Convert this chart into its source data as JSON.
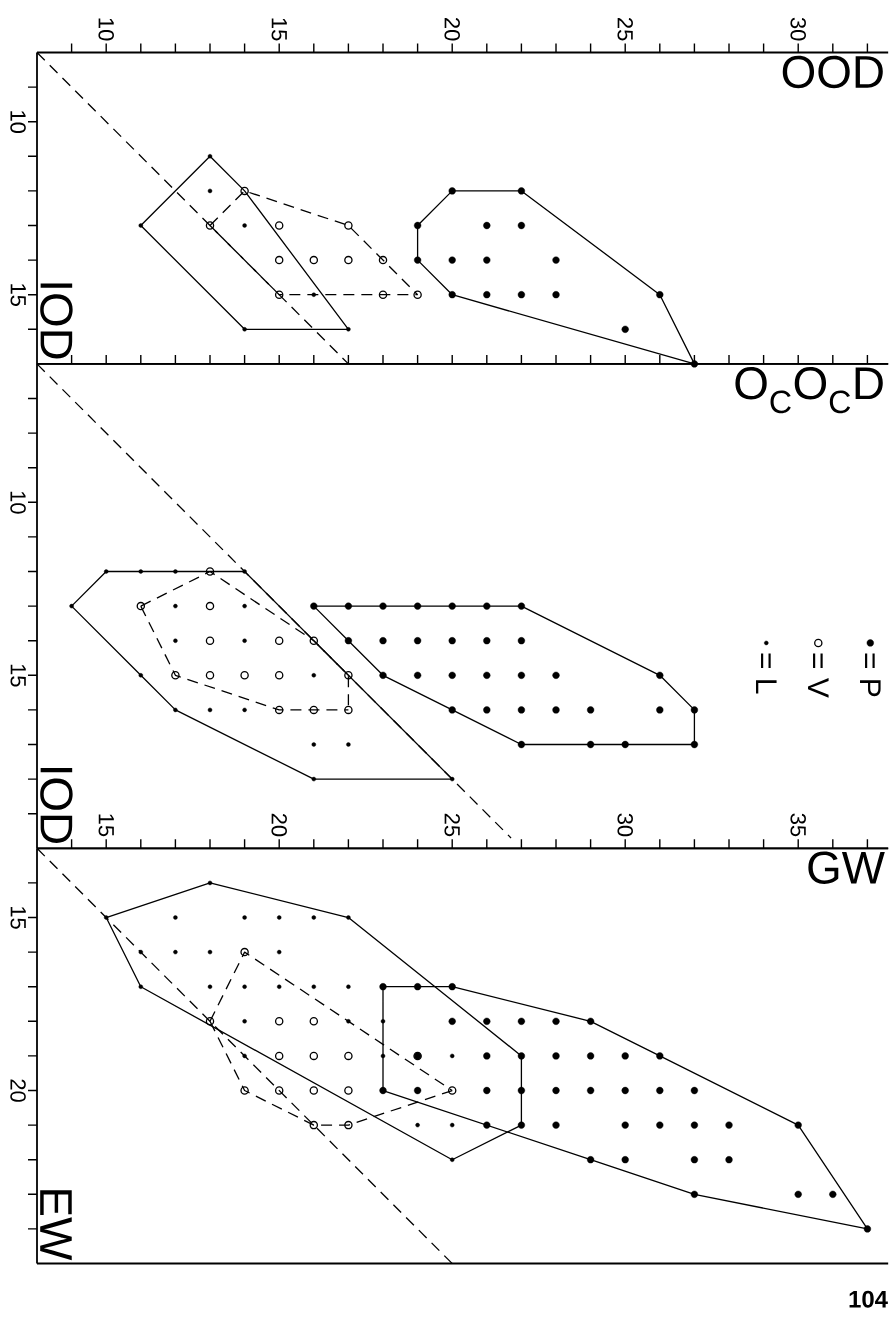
{
  "chart_data": [
    {
      "type": "scatter",
      "xlabel": "OOD",
      "ylabel": "IOD",
      "xlim": [
        8,
        32.6
      ],
      "ylim": [
        17,
        8
      ],
      "xticks": [
        {
          "value": 9,
          "label": null
        },
        10,
        {
          "value": 11,
          "label": null
        },
        {
          "value": 12,
          "label": null
        },
        {
          "value": 13,
          "label": null
        },
        {
          "value": 14,
          "label": null
        },
        15,
        {
          "value": 16,
          "label": null
        },
        {
          "value": 17,
          "label": null
        },
        {
          "value": 18,
          "label": null
        },
        {
          "value": 19,
          "label": null
        },
        20,
        {
          "value": 21,
          "label": null
        },
        {
          "value": 22,
          "label": null
        },
        {
          "value": 23,
          "label": null
        },
        {
          "value": 24,
          "label": null
        },
        25,
        {
          "value": 26,
          "label": null
        },
        {
          "value": 27,
          "label": null
        },
        {
          "value": 28,
          "label": null
        },
        {
          "value": 29,
          "label": null
        },
        30,
        {
          "value": 31,
          "label": null
        },
        {
          "value": 32,
          "label": null
        }
      ],
      "yticks": [
        {
          "value": 9,
          "label": null
        },
        10,
        {
          "value": 11,
          "label": null
        },
        {
          "value": 12,
          "label": null
        },
        {
          "value": 13,
          "label": null
        },
        {
          "value": 14,
          "label": null
        },
        15,
        {
          "value": 16,
          "label": null
        }
      ],
      "series": [
        {
          "type": "line",
          "line_style": "dashed",
          "color": "#000000",
          "x": [
            8,
            17
          ],
          "values": [
            8,
            17
          ]
        },
        {
          "type": "line",
          "line_style": "solid",
          "color": "#000000",
          "x": [
            11,
            13,
            14,
            17
          ],
          "values": [
            13,
            11,
            12,
            16
          ]
        },
        {
          "type": "line",
          "line_style": "solid",
          "color": "#000000",
          "x": [
            11,
            14,
            17
          ],
          "values": [
            13,
            16,
            16
          ]
        },
        {
          "type": "line",
          "line_style": "dashed",
          "color": "#000000",
          "x": [
            13,
            14,
            17,
            19
          ],
          "values": [
            13,
            12,
            13,
            15
          ]
        },
        {
          "type": "line",
          "line_style": "dashed",
          "color": "#000000",
          "x": [
            13,
            15,
            19
          ],
          "values": [
            13,
            15,
            15
          ]
        },
        {
          "type": "line",
          "line_style": "solid",
          "color": "#000000",
          "x": [
            19,
            19,
            20,
            22,
            26,
            27
          ],
          "values": [
            14,
            13,
            12,
            12,
            15,
            17
          ]
        },
        {
          "type": "line",
          "line_style": "solid",
          "color": "#000000",
          "x": [
            19,
            20,
            27
          ],
          "values": [
            14,
            15,
            17
          ]
        },
        {
          "marker": "circle",
          "color": "#000000",
          "x": [
            20,
            22,
            19,
            21,
            22,
            19,
            20,
            21,
            23,
            20,
            21,
            22,
            23,
            26,
            25,
            27
          ],
          "values": [
            12,
            12,
            13,
            13,
            13,
            14,
            14,
            14,
            14,
            15,
            15,
            15,
            15,
            15,
            16,
            17
          ]
        },
        {
          "marker": "circle",
          "color": "#000000",
          "x": [
            14,
            13,
            15,
            17,
            15,
            16,
            17,
            18,
            15,
            18,
            19
          ],
          "values": [
            12,
            13,
            13,
            13,
            14,
            14,
            14,
            14,
            15,
            15,
            15
          ]
        },
        {
          "marker": "circle",
          "color": "#000000",
          "x": [
            13,
            13,
            11,
            14,
            16,
            14,
            17
          ],
          "values": [
            11,
            12,
            13,
            13,
            15,
            16,
            16
          ]
        }
      ]
    },
    {
      "type": "scatter",
      "xlabel": "O$_{C}$O$_{C}$D",
      "ylabel": "IOD",
      "xlim": [
        8,
        32.6
      ],
      "ylim": [
        20,
        6
      ],
      "tick_labels": "y",
      "legend": "right",
      "xticks": [
        {
          "value": 9,
          "label": null
        },
        {
          "value": 10,
          "label": null
        },
        {
          "value": 11,
          "label": null
        },
        {
          "value": 12,
          "label": null
        },
        {
          "value": 13,
          "label": null
        },
        {
          "value": 14,
          "label": null
        },
        {
          "value": 15,
          "label": null
        },
        {
          "value": 16,
          "label": null
        },
        {
          "value": 17,
          "label": null
        },
        {
          "value": 18,
          "label": null
        },
        {
          "value": 19,
          "label": null
        },
        {
          "value": 20,
          "label": null
        },
        {
          "value": 21,
          "label": null
        },
        {
          "value": 22,
          "label": null
        },
        {
          "value": 23,
          "label": null
        },
        {
          "value": 24,
          "label": null
        },
        {
          "value": 25,
          "label": null
        },
        {
          "value": 26,
          "label": null
        },
        {
          "value": 27,
          "label": null
        },
        {
          "value": 28,
          "label": null
        },
        {
          "value": 29,
          "label": null
        },
        {
          "value": 30,
          "label": null
        },
        {
          "value": 31,
          "label": null
        },
        {
          "value": 32,
          "label": null
        }
      ],
      "yticks": [
        {
          "value": 7,
          "label": null
        },
        {
          "value": 8,
          "label": null
        },
        {
          "value": 9,
          "label": null
        },
        10,
        {
          "value": 11,
          "label": null
        },
        {
          "value": 12,
          "label": null
        },
        {
          "value": 13,
          "label": null
        },
        {
          "value": 14,
          "label": null
        },
        15,
        {
          "value": 16,
          "label": null
        },
        {
          "value": 17,
          "label": null
        },
        {
          "value": 18,
          "label": null
        },
        {
          "value": 19,
          "label": null
        }
      ],
      "series": [
        {
          "type": "line",
          "line_style": "dashed",
          "color": "#000000",
          "x": [
            8,
            21.7
          ],
          "values": [
            6,
            19.7
          ]
        },
        {
          "type": "line",
          "line_style": "solid",
          "color": "#000000",
          "x": [
            9,
            10,
            14,
            20
          ],
          "values": [
            13,
            12,
            12,
            18
          ]
        },
        {
          "type": "line",
          "line_style": "solid",
          "color": "#000000",
          "x": [
            9,
            11,
            12,
            16,
            20
          ],
          "values": [
            13,
            15,
            16,
            18,
            18
          ]
        },
        {
          "type": "line",
          "line_style": "dashed",
          "color": "#000000",
          "x": [
            11,
            13,
            16,
            17,
            17
          ],
          "values": [
            13,
            12,
            14,
            15,
            16
          ]
        },
        {
          "type": "line",
          "line_style": "dashed",
          "color": "#000000",
          "x": [
            11,
            12,
            15,
            17
          ],
          "values": [
            13,
            15,
            16,
            16
          ]
        },
        {
          "type": "line",
          "line_style": "solid",
          "color": "#000000",
          "x": [
            16,
            22,
            26,
            27,
            27
          ],
          "values": [
            13,
            13,
            15,
            16,
            17
          ]
        },
        {
          "type": "line",
          "line_style": "solid",
          "color": "#000000",
          "x": [
            16,
            17,
            18,
            20,
            22,
            27
          ],
          "values": [
            13,
            14,
            15,
            16,
            17,
            17
          ]
        },
        {
          "name": "= P",
          "marker": "circle",
          "color": "#000000",
          "x": [
            16,
            17,
            18,
            19,
            20,
            21,
            22,
            17,
            18,
            19,
            20,
            21,
            22,
            18,
            19,
            20,
            21,
            22,
            23,
            26,
            20,
            21,
            22,
            23,
            24,
            26,
            27,
            22,
            24,
            25,
            27
          ],
          "values": [
            13,
            13,
            13,
            13,
            13,
            13,
            13,
            14,
            14,
            14,
            14,
            14,
            14,
            15,
            15,
            15,
            15,
            15,
            15,
            15,
            16,
            16,
            16,
            16,
            16,
            16,
            16,
            17,
            17,
            17,
            17
          ]
        },
        {
          "name": "= V",
          "marker": "circle",
          "color": "#000000",
          "x": [
            13,
            11,
            13,
            13,
            15,
            16,
            12,
            13,
            14,
            15,
            17,
            15,
            16,
            17
          ],
          "values": [
            12,
            13,
            13,
            14,
            14,
            14,
            15,
            15,
            15,
            15,
            15,
            16,
            16,
            16
          ]
        },
        {
          "name": "= L",
          "marker": "circle",
          "color": "#000000",
          "x": [
            9,
            10,
            11,
            12,
            14,
            12,
            14,
            12,
            14,
            11,
            16,
            12,
            13,
            14,
            16,
            17,
            16,
            20
          ],
          "values": [
            13,
            12,
            12,
            12,
            12,
            13,
            13,
            14,
            14,
            15,
            15,
            16,
            16,
            16,
            17,
            17,
            18,
            18
          ]
        }
      ]
    },
    {
      "type": "scatter",
      "xlabel": "GW",
      "ylabel": "EW",
      "xlim": [
        13,
        37.6
      ],
      "ylim": [
        25,
        13
      ],
      "annotations": [
        "104"
      ],
      "xticks": [
        {
          "value": 14,
          "label": null
        },
        15,
        {
          "value": 16,
          "label": null
        },
        {
          "value": 17,
          "label": null
        },
        {
          "value": 18,
          "label": null
        },
        {
          "value": 19,
          "label": null
        },
        20,
        {
          "value": 21,
          "label": null
        },
        {
          "value": 22,
          "label": null
        },
        {
          "value": 23,
          "label": null
        },
        {
          "value": 24,
          "label": null
        },
        25,
        {
          "value": 26,
          "label": null
        },
        {
          "value": 27,
          "label": null
        },
        {
          "value": 28,
          "label": null
        },
        {
          "value": 29,
          "label": null
        },
        30,
        {
          "value": 31,
          "label": null
        },
        {
          "value": 32,
          "label": null
        },
        {
          "value": 33,
          "label": null
        },
        {
          "value": 34,
          "label": null
        },
        35,
        {
          "value": 36,
          "label": null
        },
        {
          "value": 37,
          "label": null
        }
      ],
      "yticks": [
        {
          "value": 14,
          "label": null
        },
        15,
        {
          "value": 16,
          "label": null
        },
        {
          "value": 17,
          "label": null
        },
        {
          "value": 18,
          "label": null
        },
        {
          "value": 19,
          "label": null
        },
        20,
        {
          "value": 21,
          "label": null
        },
        {
          "value": 22,
          "label": null
        },
        {
          "value": 23,
          "label": null
        },
        {
          "value": 24,
          "label": null
        }
      ],
      "series": [
        {
          "type": "line",
          "line_style": "dashed",
          "color": "#000000",
          "x": [
            13,
            25
          ],
          "values": [
            13,
            25
          ]
        },
        {
          "type": "line",
          "line_style": "solid",
          "color": "#000000",
          "x": [
            15,
            18,
            22,
            27,
            27
          ],
          "values": [
            15,
            14,
            15,
            19,
            21
          ]
        },
        {
          "type": "line",
          "line_style": "solid",
          "color": "#000000",
          "x": [
            15,
            16,
            25,
            27
          ],
          "values": [
            15,
            17,
            22,
            21
          ]
        },
        {
          "type": "line",
          "line_style": "dashed",
          "color": "#000000",
          "x": [
            18,
            19,
            25
          ],
          "values": [
            18,
            16,
            20
          ]
        },
        {
          "type": "line",
          "line_style": "dashed",
          "color": "#000000",
          "x": [
            18,
            19,
            21,
            22,
            25
          ],
          "values": [
            18,
            20,
            21,
            21,
            20
          ]
        },
        {
          "type": "line",
          "line_style": "solid",
          "color": "#000000",
          "x": [
            23,
            23,
            25,
            29,
            31,
            35,
            37
          ],
          "values": [
            20,
            17,
            17,
            18,
            19,
            21,
            24
          ]
        },
        {
          "type": "line",
          "line_style": "solid",
          "color": "#000000",
          "x": [
            23,
            29,
            32,
            37
          ],
          "values": [
            20,
            22,
            23,
            24
          ]
        },
        {
          "marker": "circle",
          "color": "#000000",
          "x": [
            23,
            24,
            25,
            25,
            26,
            27,
            28,
            29,
            24,
            26,
            27,
            28,
            29,
            30,
            31,
            23,
            24,
            26,
            27,
            28,
            29,
            30,
            31,
            32,
            26,
            27,
            28,
            30,
            31,
            32,
            33,
            35,
            29,
            30,
            32,
            33,
            32,
            35,
            36,
            37
          ],
          "values": [
            17,
            17,
            17,
            18,
            18,
            18,
            18,
            18,
            19,
            19,
            19,
            19,
            19,
            19,
            19,
            20,
            20,
            20,
            20,
            20,
            20,
            20,
            20,
            20,
            21,
            21,
            21,
            21,
            21,
            21,
            21,
            21,
            22,
            22,
            22,
            22,
            23,
            23,
            23,
            24
          ]
        },
        {
          "marker": "circle",
          "color": "#000000",
          "x": [
            19,
            18,
            20,
            21,
            20,
            21,
            22,
            24,
            19,
            20,
            21,
            22,
            25,
            21,
            22
          ],
          "values": [
            16,
            18,
            18,
            18,
            19,
            19,
            19,
            19,
            20,
            20,
            20,
            20,
            20,
            21,
            21
          ]
        },
        {
          "marker": "circle",
          "color": "#000000",
          "x": [
            18,
            15,
            17,
            19,
            20,
            21,
            22,
            16,
            17,
            18,
            20,
            16,
            18,
            19,
            20,
            21,
            22,
            19,
            22,
            23,
            19,
            23,
            25,
            24,
            25,
            25
          ],
          "values": [
            14,
            15,
            15,
            15,
            15,
            15,
            15,
            16,
            16,
            16,
            16,
            17,
            17,
            17,
            17,
            17,
            17,
            18,
            18,
            18,
            19,
            19,
            19,
            21,
            21,
            22
          ]
        }
      ]
    }
  ]
}
